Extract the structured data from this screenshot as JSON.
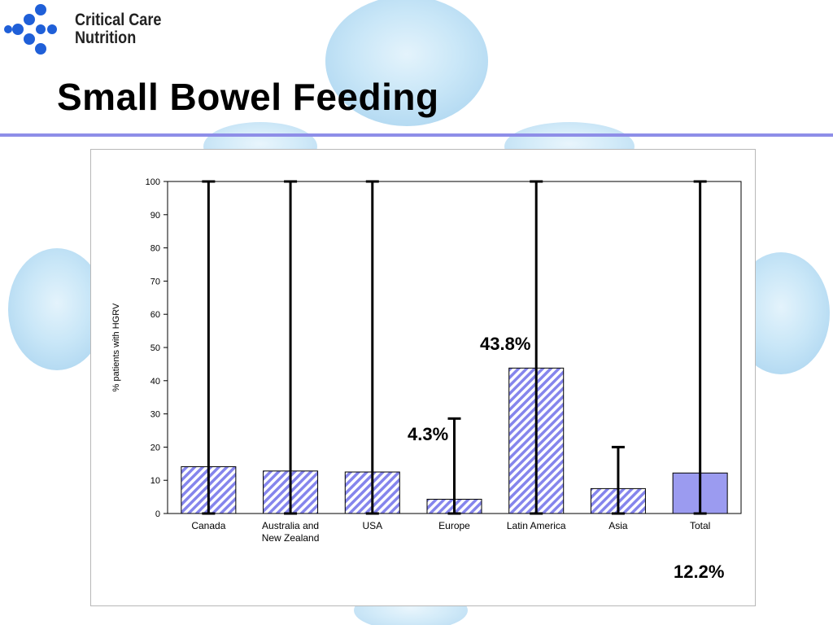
{
  "brand": {
    "line1": "Critical Care",
    "line2": "Nutrition"
  },
  "title": "Small Bowel Feeding",
  "colors": {
    "accent": "#8e8ee8",
    "bar": "#9b9bf0",
    "hatch": "#8585ec",
    "error": "#000000"
  },
  "callouts": {
    "europe": "4.3%",
    "latin_america": "43.8%",
    "total": "12.2%"
  },
  "chart_data": {
    "type": "bar",
    "ylabel": "% patients with HGRV",
    "xlabel": "",
    "ylim": [
      0,
      100
    ],
    "yticks": [
      0,
      10,
      20,
      30,
      40,
      50,
      60,
      70,
      80,
      90,
      100
    ],
    "grid": false,
    "categories": [
      "Canada",
      "Australia and New Zealand",
      "USA",
      "Europe",
      "Latin America",
      "Asia",
      "Total"
    ],
    "category_lines": [
      [
        "Canada"
      ],
      [
        "Australia and",
        "New Zealand"
      ],
      [
        "USA"
      ],
      [
        "Europe"
      ],
      [
        "Latin America"
      ],
      [
        "Asia"
      ],
      [
        "Total"
      ]
    ],
    "values": [
      14.1,
      12.8,
      12.5,
      4.3,
      43.8,
      7.5,
      12.2
    ],
    "error_low": [
      0,
      0,
      0,
      0,
      0,
      0,
      0
    ],
    "error_high": [
      100,
      100,
      100,
      28.6,
      100,
      20.0,
      100
    ],
    "fill": [
      "hatched",
      "hatched",
      "hatched",
      "hatched",
      "hatched",
      "hatched",
      "solid"
    ]
  }
}
